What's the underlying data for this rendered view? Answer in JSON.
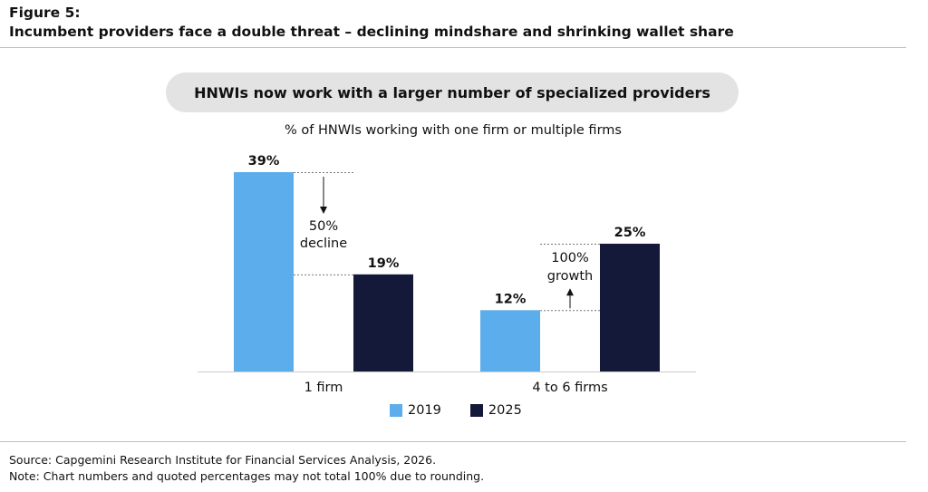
{
  "header": {
    "figure_label": "Figure 5:",
    "title": "Incumbent providers face a double threat – declining mindshare and shrinking wallet share"
  },
  "banner": "HNWIs now work with a larger number of specialized providers",
  "chart_data": {
    "type": "bar",
    "title": "% of HNWIs working with one firm or multiple firms",
    "categories": [
      "1 firm",
      "4 to 6 firms"
    ],
    "series": [
      {
        "name": "2019",
        "values": [
          39,
          12
        ],
        "labels": [
          "39%",
          "12%"
        ]
      },
      {
        "name": "2025",
        "values": [
          19,
          25
        ],
        "labels": [
          "19%",
          "25%"
        ]
      }
    ],
    "ylim": [
      0,
      39
    ],
    "grid": false,
    "legend": "bottom-center",
    "annotations": [
      {
        "category": "1 firm",
        "lines": [
          "50%",
          "decline"
        ],
        "direction": "down"
      },
      {
        "category": "4 to 6 firms",
        "lines": [
          "100%",
          "growth"
        ],
        "direction": "up"
      }
    ],
    "colors": {
      "2019": "#5badec",
      "2025": "#14193a"
    }
  },
  "footer": {
    "source": "Source: Capgemini Research Institute for Financial Services Analysis, 2026.",
    "note": "Note: Chart numbers and quoted percentages may not total 100% due to rounding."
  }
}
